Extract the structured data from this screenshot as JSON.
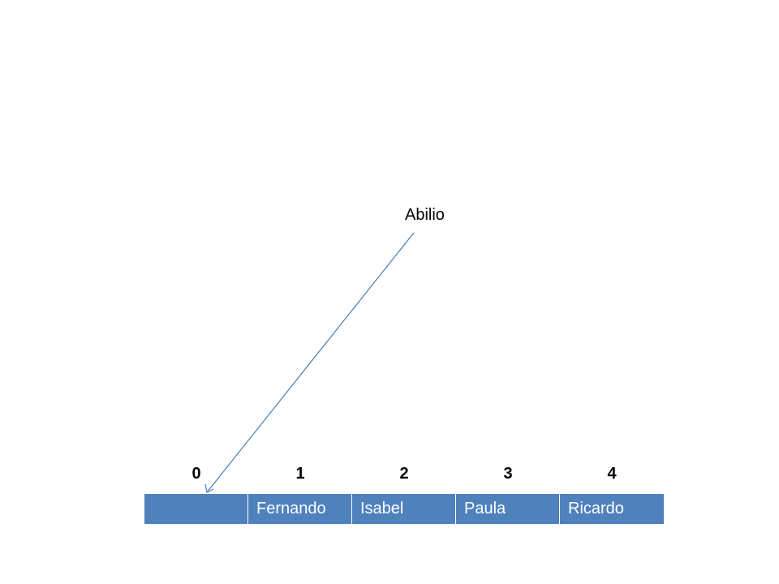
{
  "diagram": {
    "new_item": "Abilio",
    "indices": [
      "0",
      "1",
      "2",
      "3",
      "4"
    ],
    "cells": [
      "",
      "Fernando",
      "Isabel",
      "Paula",
      "Ricardo"
    ],
    "colors": {
      "cell_fill": "#4f81bd",
      "cell_text": "#ffffff",
      "arrow": "#4a7ebb"
    }
  }
}
